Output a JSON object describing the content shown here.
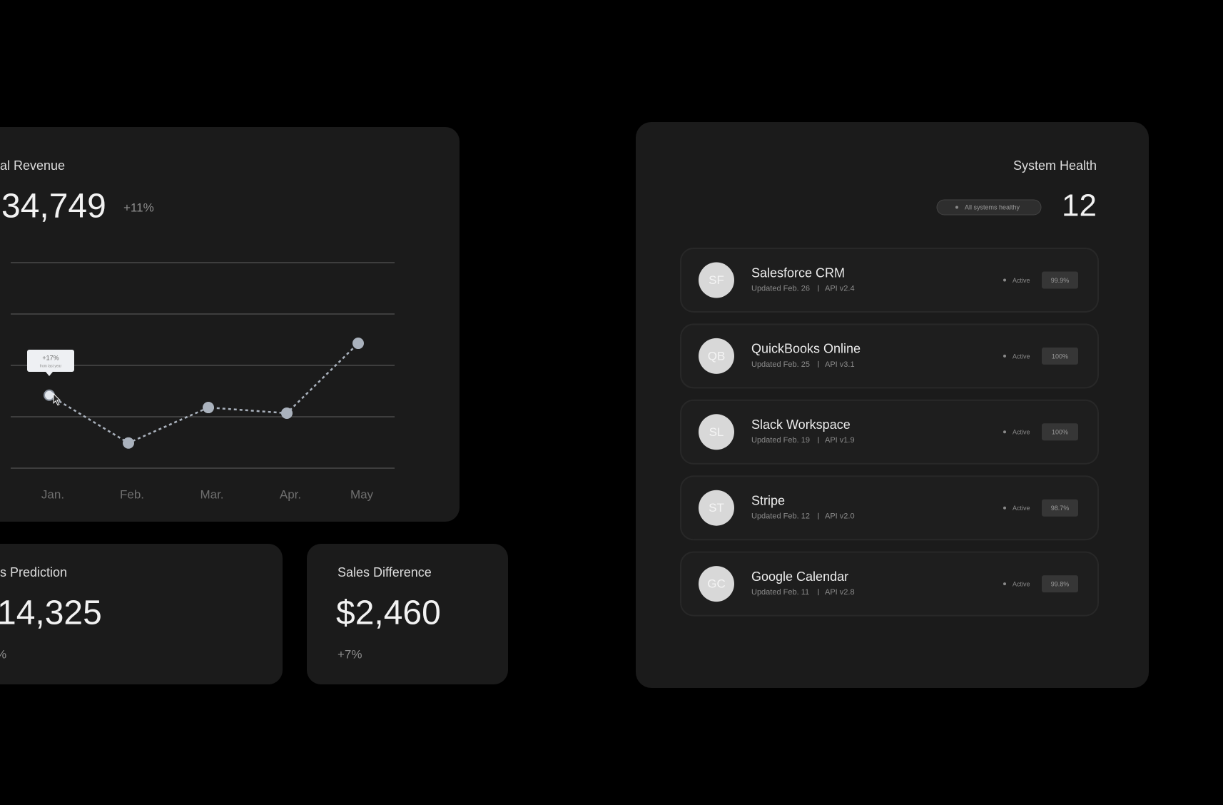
{
  "revenue_card": {
    "title": "al Revenue",
    "value": "34,749",
    "change": "+11%"
  },
  "chart_data": {
    "type": "line",
    "categories": [
      "Jan.",
      "Feb.",
      "Mar.",
      "Apr.",
      "May"
    ],
    "series": [
      {
        "color": "#aab2bd",
        "values": [
          1.42,
          0.49,
          1.18,
          1.07,
          2.43
        ]
      }
    ],
    "ylim": [
      0,
      4
    ],
    "yticks": [
      0,
      1,
      2,
      3,
      4
    ],
    "grid": true,
    "tooltip": {
      "value": "+17%",
      "note": "from last year"
    }
  },
  "prediction_card": {
    "title": "s Prediction",
    "value": "14,325",
    "change": "%"
  },
  "difference_card": {
    "title": "Sales Difference",
    "value": "$2,460",
    "change": "+7%"
  },
  "health_card": {
    "title": "System Health",
    "badge": "All systems healthy",
    "count": "12",
    "integrations": [
      {
        "initials": "SF",
        "name": "Salesforce CRM",
        "updated": "Updated Feb. 26",
        "api": "API v2.4",
        "status": "Active",
        "uptime": "99.9%"
      },
      {
        "initials": "QB",
        "name": "QuickBooks Online",
        "updated": "Updated Feb. 25",
        "api": "API v3.1",
        "status": "Active",
        "uptime": "100%"
      },
      {
        "initials": "SL",
        "name": "Slack Workspace",
        "updated": "Updated Feb. 19",
        "api": "API v1.9",
        "status": "Active",
        "uptime": "100%"
      },
      {
        "initials": "ST",
        "name": "Stripe",
        "updated": "Updated Feb. 12",
        "api": "API v2.0",
        "status": "Active",
        "uptime": "98.7%"
      },
      {
        "initials": "GC",
        "name": "Google Calendar",
        "updated": "Updated Feb. 11",
        "api": "API v2.8",
        "status": "Active",
        "uptime": "99.8%"
      }
    ]
  }
}
